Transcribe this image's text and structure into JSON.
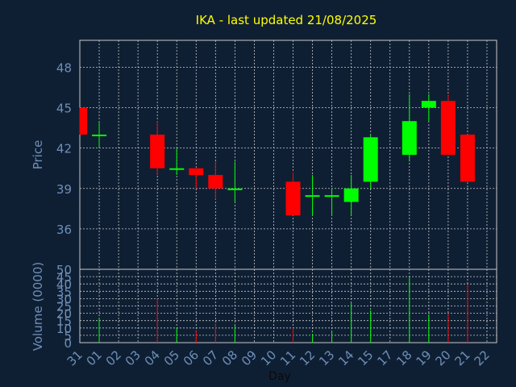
{
  "chart_data": {
    "type": "candlestick",
    "title": "IKA - last updated 21/08/2025",
    "price_panel": {
      "ylabel": "Price",
      "ylim": [
        33,
        50
      ],
      "yticks": [
        36,
        39,
        42,
        45,
        48
      ],
      "grid": true
    },
    "volume_panel": {
      "ylabel": "Volume (0000)",
      "ylim": [
        0,
        50
      ],
      "yticks": [
        0,
        5,
        10,
        15,
        20,
        25,
        30,
        35,
        40,
        45,
        50
      ],
      "grid": true
    },
    "xlabel": "Day",
    "categories": [
      "31",
      "01",
      "02",
      "03",
      "04",
      "05",
      "06",
      "07",
      "08",
      "09",
      "10",
      "11",
      "12",
      "13",
      "14",
      "15",
      "17",
      "18",
      "19",
      "20",
      "21",
      "22"
    ],
    "candles": [
      {
        "day": "31",
        "open": 45.0,
        "high": 45.0,
        "low": 43.0,
        "close": 43.0,
        "volume": 0
      },
      {
        "day": "01",
        "open": 43.0,
        "high": 44.0,
        "low": 42.0,
        "close": 43.0,
        "volume": 17
      },
      {
        "day": "04",
        "open": 43.0,
        "high": 44.0,
        "low": 40.0,
        "close": 40.5,
        "volume": 30
      },
      {
        "day": "05",
        "open": 40.5,
        "high": 42.0,
        "low": 40.0,
        "close": 40.5,
        "volume": 10
      },
      {
        "day": "06",
        "open": 40.5,
        "high": 40.5,
        "low": 39.0,
        "close": 40.0,
        "volume": 8
      },
      {
        "day": "07",
        "open": 40.0,
        "high": 41.0,
        "low": 38.2,
        "close": 39.0,
        "volume": 13
      },
      {
        "day": "08",
        "open": 39.0,
        "high": 41.0,
        "low": 38.0,
        "close": 39.0,
        "volume": 12
      },
      {
        "day": "11",
        "open": 39.5,
        "high": 40.2,
        "low": 37.0,
        "close": 37.0,
        "volume": 10
      },
      {
        "day": "12",
        "open": 38.5,
        "high": 40.0,
        "low": 37.0,
        "close": 38.5,
        "volume": 6
      },
      {
        "day": "13",
        "open": 38.5,
        "high": 39.0,
        "low": 37.0,
        "close": 38.5,
        "volume": 8
      },
      {
        "day": "14",
        "open": 38.0,
        "high": 40.0,
        "low": 37.0,
        "close": 39.0,
        "volume": 27
      },
      {
        "day": "15",
        "open": 39.5,
        "high": 43.0,
        "low": 39.0,
        "close": 42.8,
        "volume": 22
      },
      {
        "day": "18",
        "open": 41.5,
        "high": 46.0,
        "low": 41.0,
        "close": 44.0,
        "volume": 45
      },
      {
        "day": "19",
        "open": 45.0,
        "high": 46.0,
        "low": 44.0,
        "close": 45.5,
        "volume": 19
      },
      {
        "day": "20",
        "open": 45.5,
        "high": 46.0,
        "low": 41.5,
        "close": 41.5,
        "volume": 20
      },
      {
        "day": "21",
        "open": 43.0,
        "high": 43.0,
        "low": 39.5,
        "close": 39.5,
        "volume": 40
      }
    ],
    "colors": {
      "up": "#00ff00",
      "down": "#ff0000",
      "background": "#0f1f33",
      "title": "#ffff00",
      "axis_text": "#6e8fb8",
      "grid": "#c8c8c8"
    }
  }
}
